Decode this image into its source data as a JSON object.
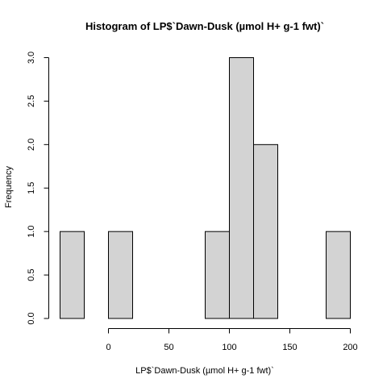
{
  "chart_data": {
    "type": "bar",
    "title": "Histogram of LP$`Dawn-Dusk (µmol H+ g-1 fwt)`",
    "xlabel": "LP$`Dawn-Dusk (µmol H+ g-1 fwt)`",
    "ylabel": "Frequency",
    "bins": [
      {
        "x0": -40,
        "x1": -20,
        "count": 1
      },
      {
        "x0": -20,
        "x1": 0,
        "count": 0
      },
      {
        "x0": 0,
        "x1": 20,
        "count": 1
      },
      {
        "x0": 20,
        "x1": 40,
        "count": 0
      },
      {
        "x0": 40,
        "x1": 60,
        "count": 0
      },
      {
        "x0": 60,
        "x1": 80,
        "count": 0
      },
      {
        "x0": 80,
        "x1": 100,
        "count": 1
      },
      {
        "x0": 100,
        "x1": 120,
        "count": 3
      },
      {
        "x0": 120,
        "x1": 140,
        "count": 2
      },
      {
        "x0": 140,
        "x1": 160,
        "count": 0
      },
      {
        "x0": 160,
        "x1": 180,
        "count": 0
      },
      {
        "x0": 180,
        "x1": 200,
        "count": 1
      }
    ],
    "xticks": [
      0,
      50,
      100,
      150,
      200
    ],
    "yticks": [
      "0.0",
      "0.5",
      "1.0",
      "1.5",
      "2.0",
      "2.5",
      "3.0"
    ],
    "xlim": [
      -40,
      200
    ],
    "ylim": [
      0,
      3
    ],
    "grid": false,
    "bar_color": "#d3d3d3",
    "edge_color": "#000000"
  }
}
